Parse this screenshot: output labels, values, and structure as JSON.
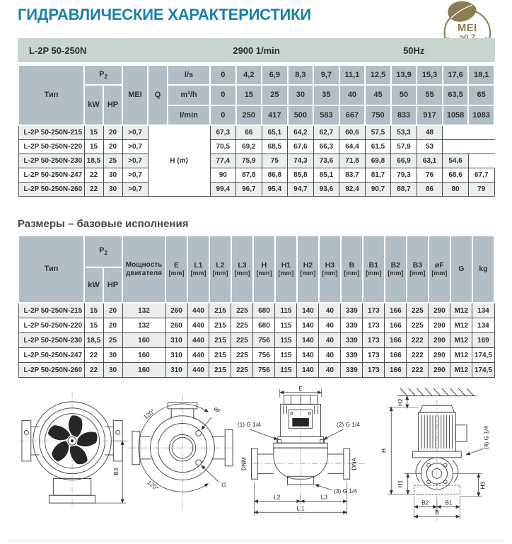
{
  "page": {
    "title": "ГИДРАВЛИЧЕСКИЕ ХАРАКТЕРИСТИКИ",
    "section2_title": "Размеры – базовые исполнения"
  },
  "badge": {
    "line1": "MEI",
    "line2": ">0,7",
    "curved_text": "MOST EFFICIENT WATER PUMPS",
    "color": "#8b7d54"
  },
  "colors": {
    "title_teal": "#1a81a9",
    "bar_sage": "#c7d5cc",
    "header_gray": "#b1bec6",
    "row_tint": "#e9efea"
  },
  "table1": {
    "title_bar": {
      "model": "L-2P 50-250N",
      "speed": "2900 1/min",
      "freq": "50Hz"
    },
    "header": {
      "type": "Тип",
      "p2": "P",
      "p2_sub": "2",
      "kw": "kW",
      "hp": "HP",
      "mei": "MEI",
      "q": "Q"
    },
    "flow_rows": [
      {
        "unit": "l/s",
        "values": [
          "0",
          "4,2",
          "6,9",
          "8,3",
          "9,7",
          "11,1",
          "12,5",
          "13,9",
          "15,3",
          "17,6",
          "18,1"
        ]
      },
      {
        "unit": "m³/h",
        "values": [
          "0",
          "15",
          "25",
          "30",
          "35",
          "40",
          "45",
          "50",
          "55",
          "63,5",
          "65"
        ]
      },
      {
        "unit": "l/min",
        "values": [
          "0",
          "250",
          "417",
          "500",
          "583",
          "667",
          "750",
          "833",
          "917",
          "1058",
          "1083"
        ]
      }
    ],
    "h_label": "H (m)",
    "rows": [
      {
        "type": "L-2P 50-250N-215",
        "kw": "15",
        "hp": "20",
        "mei": ">0,7",
        "values": [
          "67,3",
          "66",
          "65,1",
          "64,2",
          "62,7",
          "60,6",
          "57,5",
          "53,3",
          "48",
          "",
          ""
        ]
      },
      {
        "type": "L-2P 50-250N-220",
        "kw": "15",
        "hp": "20",
        "mei": ">0,7",
        "values": [
          "70,5",
          "69,2",
          "68,5",
          "67,6",
          "66,3",
          "64,4",
          "61,5",
          "57,9",
          "53",
          "",
          ""
        ]
      },
      {
        "type": "L-2P 50-250N-230",
        "kw": "18,5",
        "hp": "25",
        "mei": ">0,7",
        "values": [
          "77,4",
          "75,9",
          "75",
          "74,3",
          "73,6",
          "71,8",
          "69,8",
          "66,9",
          "63,1",
          "54,6",
          ""
        ]
      },
      {
        "type": "L-2P 50-250N-247",
        "kw": "22",
        "hp": "30",
        "mei": ">0,7",
        "values": [
          "90",
          "87,8",
          "86,8",
          "85,8",
          "85,1",
          "83,7",
          "81,7",
          "79,3",
          "76",
          "68,6",
          "67,7"
        ]
      },
      {
        "type": "L-2P 50-250N-260",
        "kw": "22",
        "hp": "30",
        "mei": ">0,7",
        "values": [
          "99,4",
          "96,7",
          "95,4",
          "94,7",
          "93,6",
          "92,4",
          "90,7",
          "88,7",
          "86",
          "80",
          "79"
        ]
      }
    ]
  },
  "table2": {
    "header": {
      "type": "Тип",
      "p2": "P",
      "p2_sub": "2",
      "kw": "kW",
      "hp": "HP",
      "motor_power": "Мощность двигателя",
      "dims": [
        {
          "l": "E",
          "u": "[mm]"
        },
        {
          "l": "L1",
          "u": "[mm]"
        },
        {
          "l": "L2",
          "u": "[mm]"
        },
        {
          "l": "L3",
          "u": "[mm]"
        },
        {
          "l": "H",
          "u": "[mm]"
        },
        {
          "l": "H1",
          "u": "[mm]"
        },
        {
          "l": "H2",
          "u": "[mm]"
        },
        {
          "l": "H3",
          "u": "[mm]"
        },
        {
          "l": "B",
          "u": "[mm]"
        },
        {
          "l": "B1",
          "u": "[mm]"
        },
        {
          "l": "B2",
          "u": "[mm]"
        },
        {
          "l": "B3",
          "u": "[mm]"
        },
        {
          "l": "øF",
          "u": "[mm]"
        },
        {
          "l": "G",
          "u": ""
        },
        {
          "l": "kg",
          "u": ""
        }
      ]
    },
    "rows": [
      {
        "type": "L-2P 50-250N-215",
        "kw": "15",
        "hp": "20",
        "power": "132",
        "values": [
          "260",
          "440",
          "215",
          "225",
          "680",
          "115",
          "140",
          "40",
          "339",
          "173",
          "166",
          "225",
          "290",
          "M12",
          "134"
        ]
      },
      {
        "type": "L-2P 50-250N-220",
        "kw": "15",
        "hp": "20",
        "power": "132",
        "values": [
          "260",
          "440",
          "215",
          "225",
          "680",
          "115",
          "140",
          "40",
          "339",
          "173",
          "166",
          "225",
          "290",
          "M12",
          "134"
        ]
      },
      {
        "type": "L-2P 50-250N-230",
        "kw": "18,5",
        "hp": "25",
        "power": "160",
        "values": [
          "310",
          "440",
          "215",
          "225",
          "756",
          "115",
          "140",
          "40",
          "339",
          "173",
          "166",
          "222",
          "290",
          "M12",
          "169"
        ]
      },
      {
        "type": "L-2P 50-250N-247",
        "kw": "22",
        "hp": "30",
        "power": "160",
        "values": [
          "310",
          "440",
          "215",
          "225",
          "756",
          "115",
          "140",
          "40",
          "339",
          "173",
          "166",
          "222",
          "290",
          "M12",
          "174,5"
        ]
      },
      {
        "type": "L-2P 50-250N-260",
        "kw": "22",
        "hp": "30",
        "power": "160",
        "values": [
          "310",
          "440",
          "215",
          "225",
          "756",
          "115",
          "140",
          "40",
          "339",
          "173",
          "166",
          "222",
          "290",
          "M12",
          "174,5"
        ]
      }
    ]
  },
  "drawings": {
    "rear_view": {
      "b3": "B3"
    },
    "port_view": {
      "angle1": "120°",
      "angle2": "120°",
      "f": "øF",
      "g": "G"
    },
    "front_view": {
      "e": "E",
      "g1": "(1) G 1/4",
      "g2": "(2) G 1/4",
      "g3": "(3) G 1/4",
      "dnm": "DNM",
      "dna": "DNA",
      "l1": "L 1",
      "l2": "L2",
      "l3": "L3"
    },
    "side_view": {
      "h": "H",
      "h1": "H1",
      "h2": "H2",
      "h3": "H3",
      "g4": "(4) G 1/4",
      "b": "B",
      "b1": "B1",
      "b2": "B2"
    }
  }
}
